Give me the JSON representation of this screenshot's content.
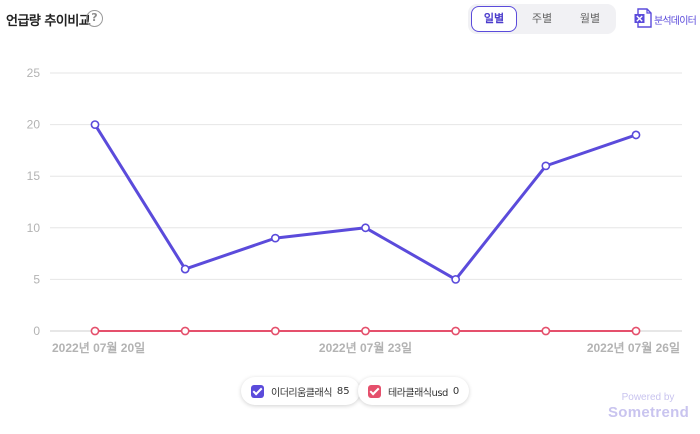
{
  "header": {
    "title": "언급량 추이비교",
    "help_symbol": "?",
    "tabs": [
      {
        "label": "일별",
        "active": true
      },
      {
        "label": "주별",
        "active": false
      },
      {
        "label": "월별",
        "active": false
      }
    ],
    "download_label": "분석데이터"
  },
  "chart_data": {
    "type": "line",
    "title": "",
    "xlabel": "",
    "ylabel": "",
    "ylim": [
      0,
      25
    ],
    "yticks": [
      0,
      5,
      10,
      15,
      20,
      25
    ],
    "grid": true,
    "x": [
      "2022-07-20",
      "2022-07-21",
      "2022-07-22",
      "2022-07-23",
      "2022-07-24",
      "2022-07-25",
      "2022-07-26"
    ],
    "xtick_labels": [
      {
        "index": 0,
        "label": "2022년 07월 20일"
      },
      {
        "index": 3,
        "label": "2022년 07월 23일"
      },
      {
        "index": 6,
        "label": "2022년 07월 26일"
      }
    ],
    "series": [
      {
        "name": "이더리움클래식",
        "total": "85",
        "color": "#5b4bdb",
        "values": [
          20,
          6,
          9,
          10,
          5,
          16,
          19
        ]
      },
      {
        "name": "테라클래식usd",
        "total": "0",
        "color": "#e5506c",
        "values": [
          0,
          0,
          0,
          0,
          0,
          0,
          0
        ]
      }
    ],
    "legend_position": "bottom-center"
  },
  "branding": {
    "powered_by": "Powered by",
    "name": "Sometrend"
  }
}
